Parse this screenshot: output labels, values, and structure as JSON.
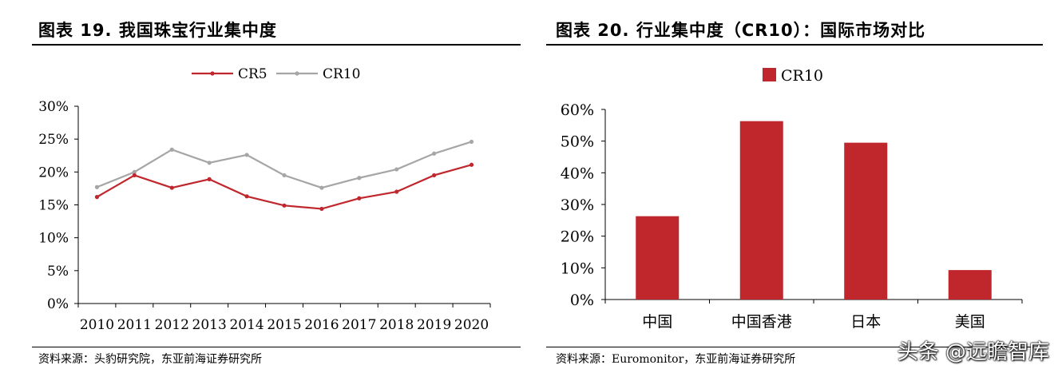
{
  "left_panel": {
    "title": "图表 19. 我国珠宝行业集中度",
    "source": "资料来源：头豹研究院，东亚前海证券研究所"
  },
  "right_panel": {
    "title": "图表 20. 行业集中度（CR10）：国际市场对比",
    "source": "资料来源：Euromonitor，东亚前海证券研究所"
  },
  "watermark": "头条 @远瞻智库",
  "colors": {
    "cr5": "#c0272d",
    "cr10": "#a6a6a6",
    "bar": "#c0272d"
  },
  "chart_data": [
    {
      "type": "line",
      "categories": [
        "2010",
        "2011",
        "2012",
        "2013",
        "2014",
        "2015",
        "2016",
        "2017",
        "2018",
        "2019",
        "2020"
      ],
      "series": [
        {
          "name": "CR5",
          "values": [
            16.2,
            19.5,
            17.6,
            18.9,
            16.3,
            14.9,
            14.4,
            16.0,
            17.0,
            19.5,
            21.1
          ]
        },
        {
          "name": "CR10",
          "values": [
            17.7,
            20.0,
            23.4,
            21.4,
            22.6,
            19.5,
            17.6,
            19.1,
            20.4,
            22.8,
            24.6
          ]
        }
      ],
      "yticks": [
        "0%",
        "5%",
        "10%",
        "15%",
        "20%",
        "25%",
        "30%"
      ],
      "ylim": [
        0,
        30
      ],
      "legend": "top-center",
      "grid": false
    },
    {
      "type": "bar",
      "categories": [
        "中国",
        "中国香港",
        "日本",
        "美国"
      ],
      "series": [
        {
          "name": "CR10",
          "values": [
            26.3,
            56.3,
            49.5,
            9.3
          ]
        }
      ],
      "yticks": [
        "0%",
        "10%",
        "20%",
        "30%",
        "40%",
        "50%",
        "60%"
      ],
      "ylim": [
        0,
        60
      ],
      "legend": "top-center",
      "grid": false
    }
  ]
}
